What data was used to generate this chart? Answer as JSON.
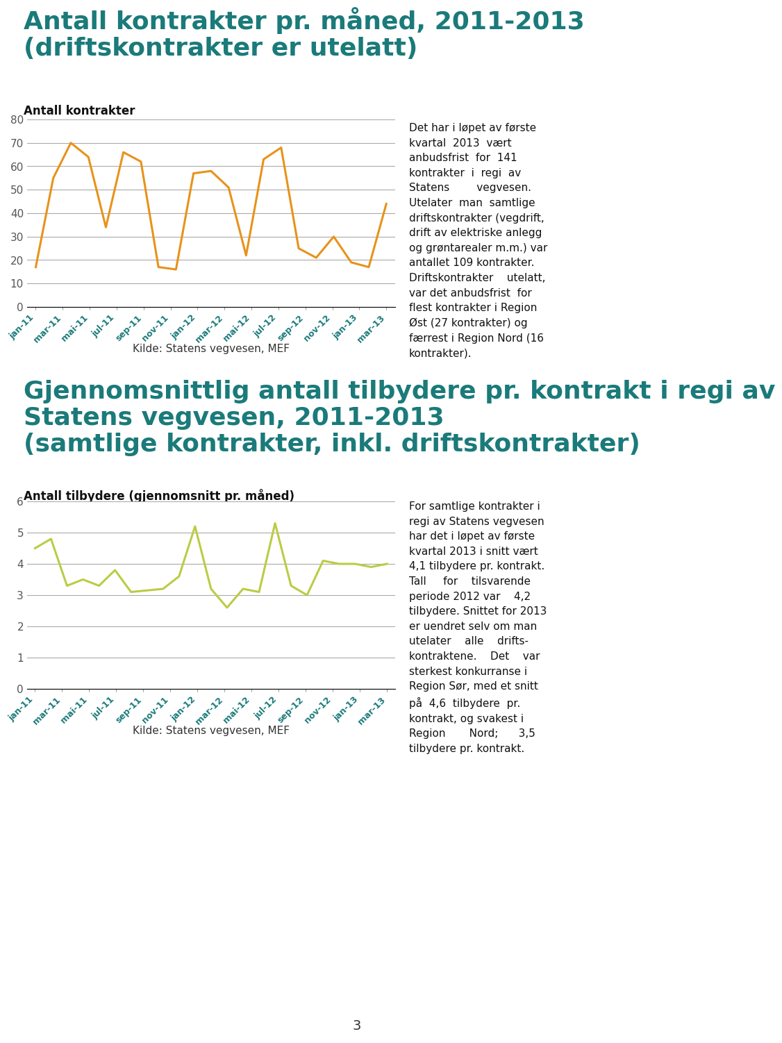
{
  "chart1_title_line1": "Antall kontrakter pr. måned, 2011-2013",
  "chart1_title_line2": "(driftskontrakter er utelatt)",
  "chart1_ylabel": "Antall kontrakter",
  "chart1_ylim": [
    0,
    80
  ],
  "chart1_yticks": [
    0,
    10,
    20,
    30,
    40,
    50,
    60,
    70,
    80
  ],
  "chart1_color": "#E8921A",
  "chart1_values": [
    17,
    55,
    70,
    64,
    34,
    66,
    62,
    17,
    16,
    57,
    58,
    51,
    22,
    63,
    68,
    25,
    21,
    30,
    19,
    17,
    44
  ],
  "chart2_title_line1": "Gjennomsnittlig antall tilbydere pr. kontrakt i regi av",
  "chart2_title_line2": "Statens vegvesen, 2011-2013",
  "chart2_title_line3": "(samtlige kontrakter, inkl. driftskontrakter)",
  "chart2_ylabel": "Antall tilbydere (gjennomsnitt pr. måned)",
  "chart2_ylim": [
    0,
    6
  ],
  "chart2_yticks": [
    0,
    1,
    2,
    3,
    4,
    5,
    6
  ],
  "chart2_color": "#BBCC44",
  "chart2_values": [
    4.5,
    4.8,
    3.3,
    3.5,
    3.3,
    3.8,
    3.1,
    3.15,
    3.2,
    3.6,
    5.2,
    3.2,
    2.6,
    3.2,
    3.1,
    5.3,
    3.3,
    3.0,
    4.1,
    4.0,
    4.0,
    3.9,
    4.0
  ],
  "x_labels": [
    "jan-11",
    "mar-11",
    "mai-11",
    "jul-11",
    "sep-11",
    "nov-11",
    "jan-12",
    "mar-12",
    "mai-12",
    "jul-12",
    "sep-12",
    "nov-12",
    "jan-13",
    "mar-13"
  ],
  "source": "Kilde: Statens vegvesen, MEF",
  "title_color": "#1B7A7A",
  "tick_label_color": "#1B7A7A",
  "ytick_color": "#555555",
  "grid_color": "#AAAAAA",
  "background_color": "#FFFFFF",
  "text1": "Det har i løpet av første\nkvartal  2013  vært\nanbudsfrist  for  141\nkontrakter  i  regi  av\nStatens        vegvesen.\nUtelater  man  samtlige\ndriftskontrakter (vegdrift,\ndrift av elektriske anlegg\nog grøntarealer m.m.) var\nantallet 109 kontrakter.\nDriftskontrakter    utelatt,\nvar det anbudsfrist  for\nflest kontrakter i Region\nØst (27 kontrakter) og\nfærrest i Region Nord (16\nkontrakter).",
  "text2": "For samtlige kontrakter i\nregi av Statens vegvesen\nhar det i løpet av første\nkvartal 2013 i snitt vært\n4,1 tilbydere pr. kontrakt.\nTall     for    tilsvarende\nperiode 2012 var    4,2\ntilbydere. Snittet for 2013\ner uendret selv om man\nutelater    alle    drifts-\nkontraktene.    Det    var\nsterkest konkurranse i\nRegion Sør, med et snitt\npå  4,6  tilbydere  pr.\nkontrakt, og svakest i\nRegion       Nord;      3,5\ntilbydere pr. kontrakt.",
  "page_number": "3",
  "title1_fontsize": 26,
  "title2_fontsize": 26,
  "ylabel_fontsize": 12,
  "tick_fontsize": 11,
  "xlabel_fontsize": 9,
  "source_fontsize": 11,
  "text_fontsize": 11,
  "page_fontsize": 14
}
